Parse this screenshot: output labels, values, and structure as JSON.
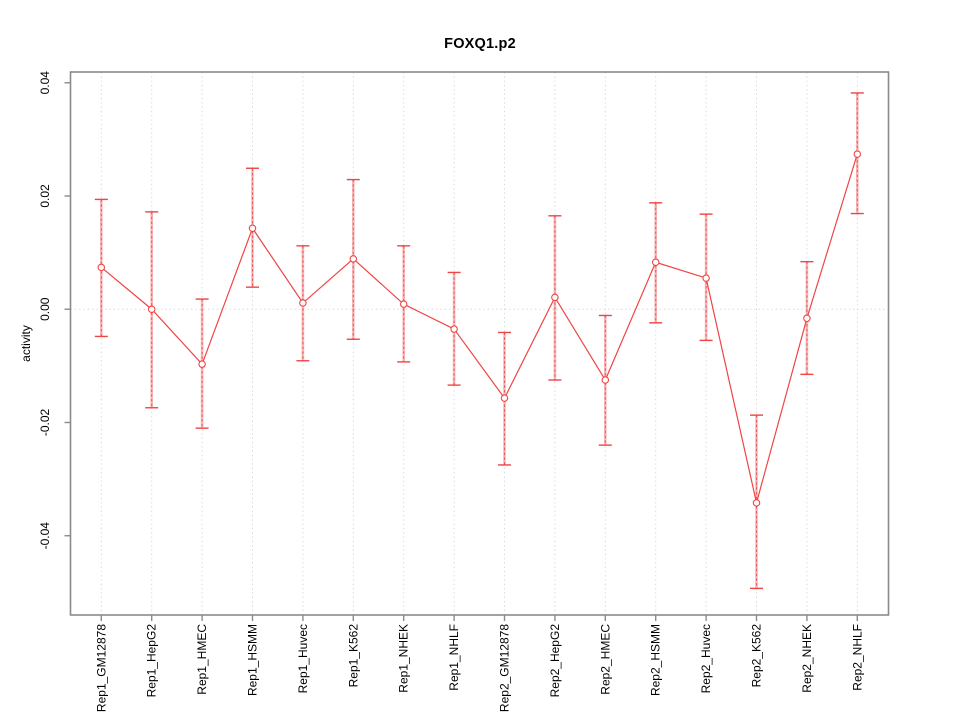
{
  "chart_data": {
    "type": "line",
    "title": "FOXQ1.p2",
    "xlabel": "",
    "ylabel": "activity",
    "categories": [
      "Rep1_GM12878",
      "Rep1_HepG2",
      "Rep1_HMEC",
      "Rep1_HSMM",
      "Rep1_Huvec",
      "Rep1_K562",
      "Rep1_NHEK",
      "Rep1_NHLF",
      "Rep2_GM12878",
      "Rep2_HepG2",
      "Rep2_HMEC",
      "Rep2_HSMM",
      "Rep2_Huvec",
      "Rep2_K562",
      "Rep2_NHEK",
      "Rep2_NHLF"
    ],
    "series": [
      {
        "name": "mean activity",
        "values": [
          0.0074,
          0.0,
          -0.0097,
          0.0143,
          0.0011,
          0.0089,
          0.0009,
          -0.0035,
          -0.0157,
          0.0021,
          -0.0125,
          0.0083,
          0.0055,
          -0.0342,
          -0.0016,
          0.0274
        ]
      },
      {
        "name": "upper error bound",
        "values": [
          0.0194,
          0.0172,
          0.0018,
          0.0249,
          0.0112,
          0.0229,
          0.0112,
          0.0065,
          -0.0041,
          0.0165,
          -0.0011,
          0.0188,
          0.0168,
          -0.0187,
          0.0084,
          0.0382
        ]
      },
      {
        "name": "lower error bound",
        "values": [
          -0.0048,
          -0.0174,
          -0.021,
          0.0039,
          -0.0091,
          -0.0053,
          -0.0093,
          -0.0134,
          -0.0275,
          -0.0125,
          -0.024,
          -0.0024,
          -0.0055,
          -0.0493,
          -0.0115,
          0.0169
        ]
      }
    ],
    "y_ticks": [
      {
        "value": 0.04,
        "label": "0.04"
      },
      {
        "value": 0.02,
        "label": "0.02"
      },
      {
        "value": 0.0,
        "label": "0.00"
      },
      {
        "value": -0.02,
        "label": "-0.02"
      },
      {
        "value": -0.04,
        "label": "-0.04"
      }
    ],
    "ylim": [
      -0.054,
      0.0419
    ],
    "legend": "none",
    "grid": {
      "vertical_per_category": true,
      "horizontal_zero_line": true,
      "style": "dotted"
    },
    "colors": {
      "series_line": "#ef4444",
      "point_stroke": "#ef4444",
      "point_fill": "#ffffff",
      "error_bar_band": "#f47c7c",
      "error_bar_dash": "#e94f4f",
      "error_bar_cap": "#ef4444",
      "grid_line": "#dcdcdc",
      "axis_frame": "#8a8a8a",
      "tick_mark": "#8a8a8a",
      "text": "#000000"
    }
  }
}
